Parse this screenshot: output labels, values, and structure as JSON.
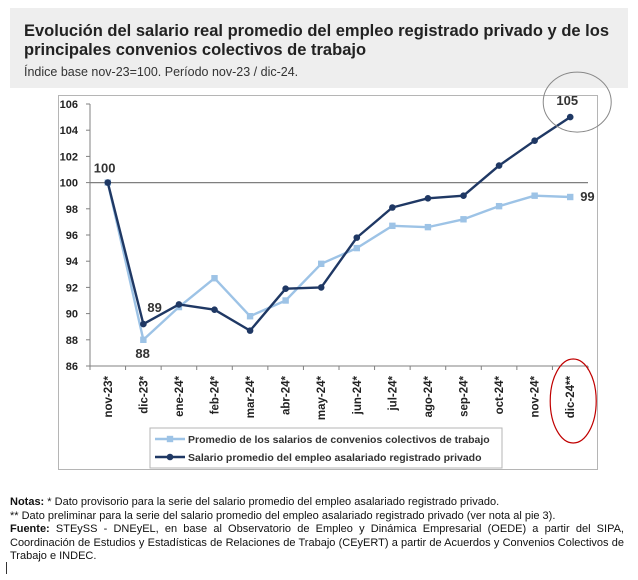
{
  "header": {
    "title": "Evolución del salario real promedio del empleo registrado privado y de los principales convenios colectivos de trabajo",
    "subtitle": "Índice base nov-23=100. Período nov-23 / dic-24."
  },
  "chart_data": {
    "type": "line",
    "title": "",
    "xlabel": "",
    "ylabel": "",
    "categories": [
      "nov-23*",
      "dic-23*",
      "ene-24*",
      "feb-24*",
      "mar-24*",
      "abr-24*",
      "may-24*",
      "jun-24*",
      "jul-24*",
      "ago-24*",
      "sep-24*",
      "oct-24*",
      "nov-24*",
      "dic-24**"
    ],
    "ylim": [
      86,
      106
    ],
    "yticks": [
      "86",
      "88",
      "90",
      "92",
      "94",
      "96",
      "98",
      "100",
      "102",
      "104",
      "106"
    ],
    "reference_line": 100,
    "series": [
      {
        "name": "Promedio de los salarios de convenios colectivos de trabajo",
        "color": "#9dc3e6",
        "values": [
          100,
          88.0,
          90.5,
          92.7,
          89.8,
          91.0,
          93.8,
          95.0,
          96.7,
          96.6,
          97.2,
          98.2,
          99.0,
          98.9
        ]
      },
      {
        "name": "Salario promedio del empleo asalariado registrado privado",
        "color": "#1f3864",
        "values": [
          100,
          89.2,
          90.7,
          90.3,
          88.7,
          91.9,
          92.0,
          95.8,
          98.1,
          98.8,
          99.0,
          101.3,
          103.2,
          105.0
        ]
      }
    ],
    "data_labels": [
      {
        "text": "100",
        "x": "nov-23*",
        "value": 100
      },
      {
        "text": "89",
        "x": "dic-23*",
        "value": 89.2
      },
      {
        "text": "88",
        "x": "dic-23*",
        "value": 88.0
      },
      {
        "text": "105",
        "x": "dic-24**",
        "value": 105.0
      },
      {
        "text": "99",
        "x": "dic-24**",
        "value": 98.9
      }
    ],
    "legend_position": "bottom",
    "annotations": [
      {
        "shape": "circle",
        "color": "#888888",
        "around": "105"
      },
      {
        "shape": "ellipse",
        "color": "#c00000",
        "around": "dic-24**"
      }
    ]
  },
  "notes": {
    "notas_label": "Notas:",
    "note1": "* Dato provisorio para la serie del salario promedio del empleo asalariado registrado privado.",
    "note2": "** Dato preliminar para la serie del salario promedio del empleo asalariado registrado privado (ver nota al pie 3).",
    "fuente_label": "Fuente:",
    "fuente": " STEySS - DNEyEL, en base al Observatorio de Empleo y Dinámica Empresarial (OEDE) a partir del SIPA, Coordinación de Estudios y Estadísticas de Relaciones de Trabajo (CEyERT) a partir de Acuerdos y Convenios Colectivos de Trabajo e INDEC."
  }
}
